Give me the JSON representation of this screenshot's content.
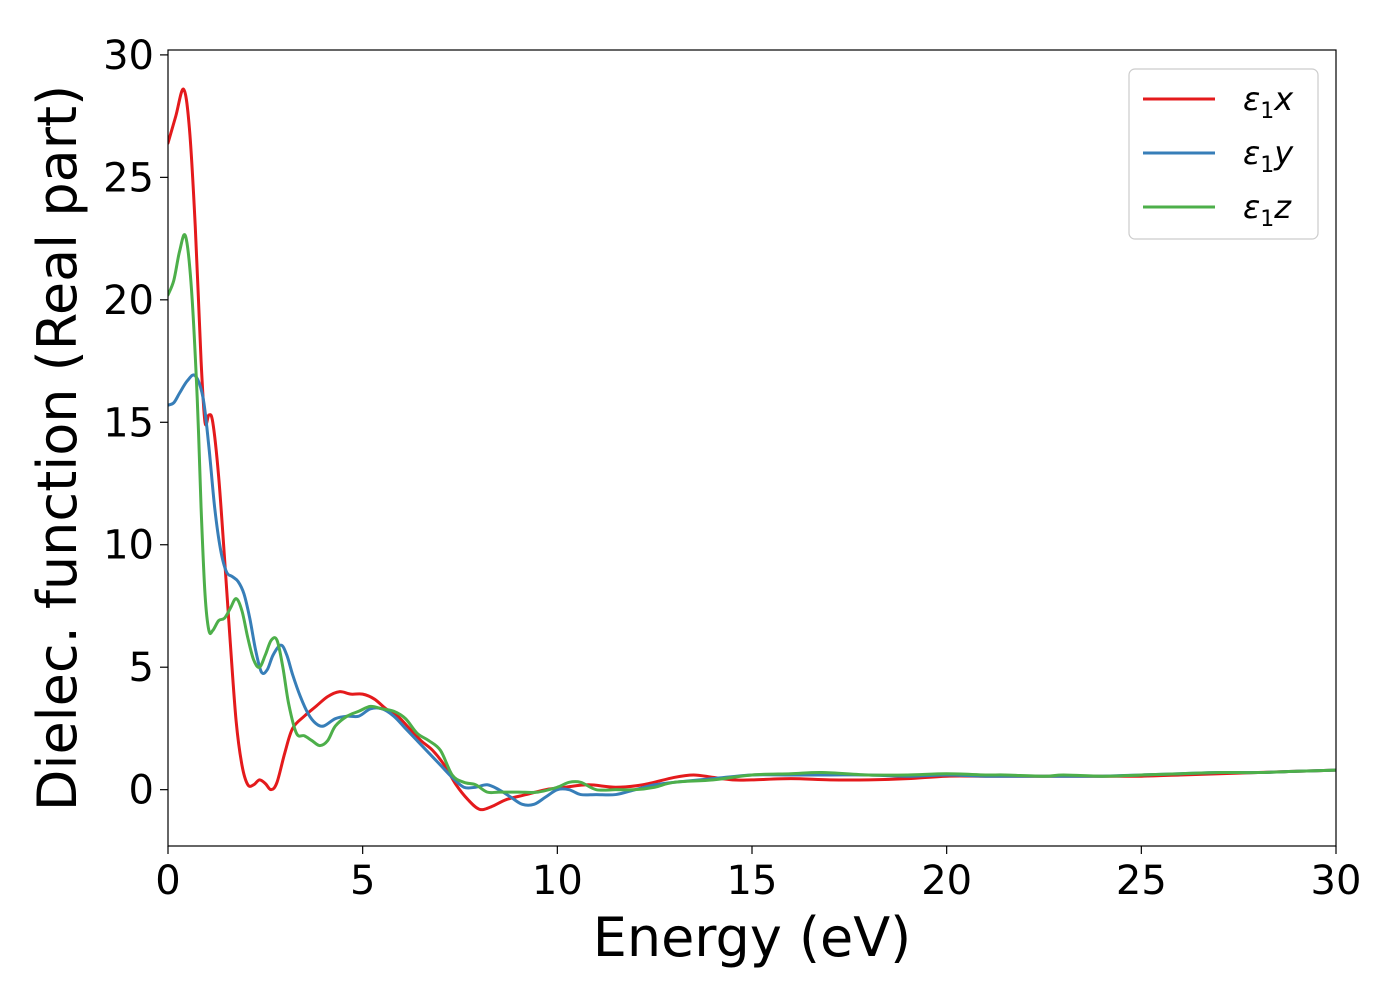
{
  "chart_data": {
    "type": "line",
    "xlabel": "Energy (eV)",
    "ylabel": "Dielec. function (Real part)",
    "xlim": [
      0,
      30
    ],
    "ylim": [
      -2.3,
      30.2
    ],
    "xticks": [
      0,
      5,
      10,
      15,
      20,
      25,
      30
    ],
    "yticks": [
      0,
      5,
      10,
      15,
      20,
      25,
      30
    ],
    "grid": false,
    "legend_position": "top-right",
    "series": [
      {
        "name": "ε1x",
        "name_parts": {
          "symbol": "ε",
          "sub": "1",
          "axis": "x"
        },
        "color": "#e41a1c",
        "x": [
          0,
          0.2,
          0.4,
          0.55,
          0.7,
          0.85,
          0.95,
          1.05,
          1.15,
          1.3,
          1.45,
          1.6,
          1.75,
          1.9,
          2.05,
          2.2,
          2.35,
          2.5,
          2.65,
          2.8,
          3.0,
          3.2,
          3.5,
          3.8,
          4.1,
          4.4,
          4.7,
          5.0,
          5.3,
          5.6,
          5.9,
          6.2,
          6.5,
          6.8,
          7.1,
          7.4,
          7.7,
          8.0,
          8.3,
          8.7,
          9.2,
          9.7,
          10.2,
          10.8,
          11.5,
          12.2,
          13.0,
          13.5,
          14.0,
          14.5,
          15.0,
          16.0,
          17.0,
          18.0,
          19.0,
          20.0,
          21.0,
          22.0,
          23.0,
          24.0,
          25.0,
          26.0,
          27.0,
          28.0,
          29.0,
          30.0
        ],
        "y": [
          26.4,
          27.5,
          28.6,
          27.0,
          23.0,
          17.5,
          15.0,
          15.3,
          15.0,
          12.8,
          9.5,
          6.0,
          2.8,
          1.0,
          0.2,
          0.2,
          0.4,
          0.25,
          0.0,
          0.3,
          1.5,
          2.5,
          3.0,
          3.4,
          3.8,
          4.0,
          3.9,
          3.9,
          3.7,
          3.3,
          3.0,
          2.5,
          2.0,
          1.6,
          1.0,
          0.2,
          -0.4,
          -0.8,
          -0.7,
          -0.4,
          -0.2,
          0.0,
          0.1,
          0.2,
          0.1,
          0.2,
          0.5,
          0.6,
          0.5,
          0.4,
          0.4,
          0.45,
          0.4,
          0.4,
          0.45,
          0.55,
          0.55,
          0.55,
          0.55,
          0.55,
          0.55,
          0.6,
          0.65,
          0.7,
          0.75,
          0.8
        ]
      },
      {
        "name": "ε1y",
        "name_parts": {
          "symbol": "ε",
          "sub": "1",
          "axis": "y"
        },
        "color": "#377eb8",
        "x": [
          0,
          0.15,
          0.3,
          0.5,
          0.7,
          0.9,
          1.05,
          1.2,
          1.35,
          1.5,
          1.65,
          1.8,
          1.95,
          2.1,
          2.25,
          2.4,
          2.55,
          2.7,
          2.9,
          3.05,
          3.2,
          3.4,
          3.6,
          3.8,
          4.0,
          4.3,
          4.6,
          4.9,
          5.2,
          5.5,
          5.8,
          6.1,
          6.4,
          6.7,
          7.0,
          7.3,
          7.6,
          7.9,
          8.2,
          8.5,
          8.8,
          9.1,
          9.4,
          9.7,
          10.0,
          10.3,
          10.6,
          11.0,
          11.5,
          12.0,
          12.5,
          13.0,
          14.0,
          15.0,
          16.0,
          17.0,
          18.0,
          19.0,
          20.0,
          21.0,
          22.0,
          23.0,
          24.0,
          25.0,
          26.0,
          27.0,
          28.0,
          29.0,
          30.0
        ],
        "y": [
          15.7,
          15.8,
          16.2,
          16.7,
          16.9,
          16.0,
          14.0,
          11.5,
          9.8,
          8.9,
          8.7,
          8.5,
          8.0,
          7.0,
          5.7,
          4.8,
          4.9,
          5.5,
          5.9,
          5.5,
          4.7,
          3.8,
          3.1,
          2.7,
          2.6,
          2.9,
          3.0,
          3.0,
          3.3,
          3.3,
          3.0,
          2.5,
          2.0,
          1.5,
          1.0,
          0.5,
          0.1,
          0.1,
          0.2,
          0.0,
          -0.3,
          -0.6,
          -0.6,
          -0.3,
          0.0,
          0.0,
          -0.2,
          -0.2,
          -0.2,
          0.0,
          0.2,
          0.3,
          0.45,
          0.6,
          0.6,
          0.6,
          0.6,
          0.55,
          0.6,
          0.55,
          0.55,
          0.55,
          0.55,
          0.6,
          0.65,
          0.7,
          0.7,
          0.75,
          0.8
        ]
      },
      {
        "name": "ε1z",
        "name_parts": {
          "symbol": "ε",
          "sub": "1",
          "axis": "z"
        },
        "color": "#4daf4a",
        "x": [
          0,
          0.15,
          0.3,
          0.45,
          0.6,
          0.75,
          0.85,
          0.95,
          1.05,
          1.15,
          1.3,
          1.45,
          1.6,
          1.75,
          1.9,
          2.05,
          2.2,
          2.35,
          2.5,
          2.65,
          2.8,
          2.95,
          3.1,
          3.3,
          3.5,
          3.7,
          3.9,
          4.1,
          4.3,
          4.6,
          4.9,
          5.2,
          5.5,
          5.8,
          6.1,
          6.4,
          6.7,
          7.0,
          7.3,
          7.6,
          7.9,
          8.2,
          8.5,
          9.0,
          9.5,
          10.0,
          10.3,
          10.6,
          11.0,
          11.5,
          12.0,
          12.5,
          13.0,
          14.0,
          15.0,
          16.0,
          16.8,
          18.0,
          19.0,
          20.0,
          21.0,
          21.5,
          22.5,
          23.0,
          24.0,
          25.0,
          26.0,
          27.0,
          28.0,
          29.0,
          30.0
        ],
        "y": [
          20.2,
          20.8,
          22.0,
          22.6,
          20.5,
          16.0,
          11.5,
          8.0,
          6.5,
          6.5,
          6.9,
          7.0,
          7.4,
          7.8,
          7.3,
          6.2,
          5.3,
          5.0,
          5.5,
          6.1,
          6.1,
          5.0,
          3.5,
          2.3,
          2.2,
          2.0,
          1.8,
          2.0,
          2.6,
          3.0,
          3.2,
          3.4,
          3.3,
          3.2,
          2.9,
          2.3,
          2.0,
          1.6,
          0.6,
          0.3,
          0.2,
          -0.1,
          -0.1,
          -0.1,
          -0.1,
          0.1,
          0.3,
          0.3,
          0.0,
          0.0,
          0.0,
          0.1,
          0.3,
          0.4,
          0.6,
          0.65,
          0.7,
          0.6,
          0.6,
          0.65,
          0.6,
          0.6,
          0.55,
          0.6,
          0.55,
          0.6,
          0.65,
          0.7,
          0.7,
          0.75,
          0.8
        ]
      }
    ]
  }
}
